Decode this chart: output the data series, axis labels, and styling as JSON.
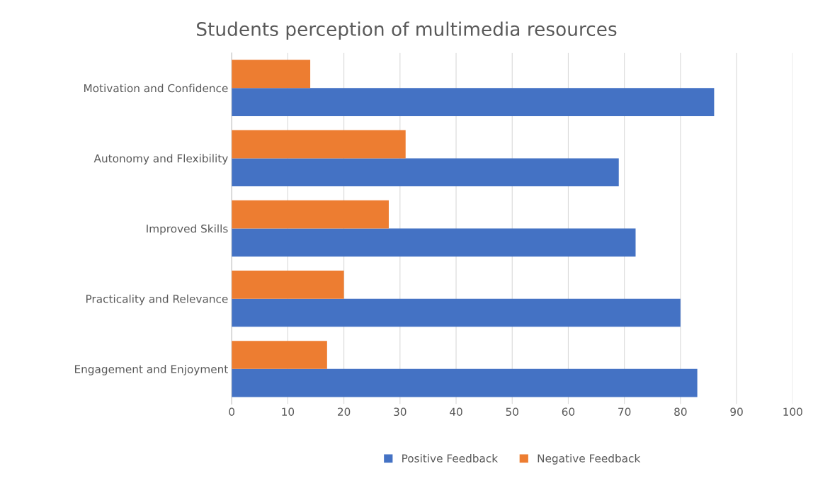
{
  "chart_data": {
    "type": "bar",
    "orientation": "horizontal",
    "title": "Students perception of multimedia resources",
    "categories": [
      "Motivation and Confidence",
      "Autonomy and Flexibility",
      "Improved Skills",
      "Practicality and Relevance",
      "Engagement and Enjoyment"
    ],
    "series": [
      {
        "name": "Positive Feedback",
        "color": "#4472c4",
        "values": [
          86,
          69,
          72,
          80,
          83
        ]
      },
      {
        "name": "Negative Feedback",
        "color": "#ed7d31",
        "values": [
          14,
          31,
          28,
          20,
          17
        ]
      }
    ],
    "xlim": [
      0,
      100
    ],
    "xticks": [
      0,
      10,
      20,
      30,
      40,
      50,
      60,
      70,
      80,
      90,
      100
    ],
    "grid": "x",
    "legend": "bottom"
  }
}
